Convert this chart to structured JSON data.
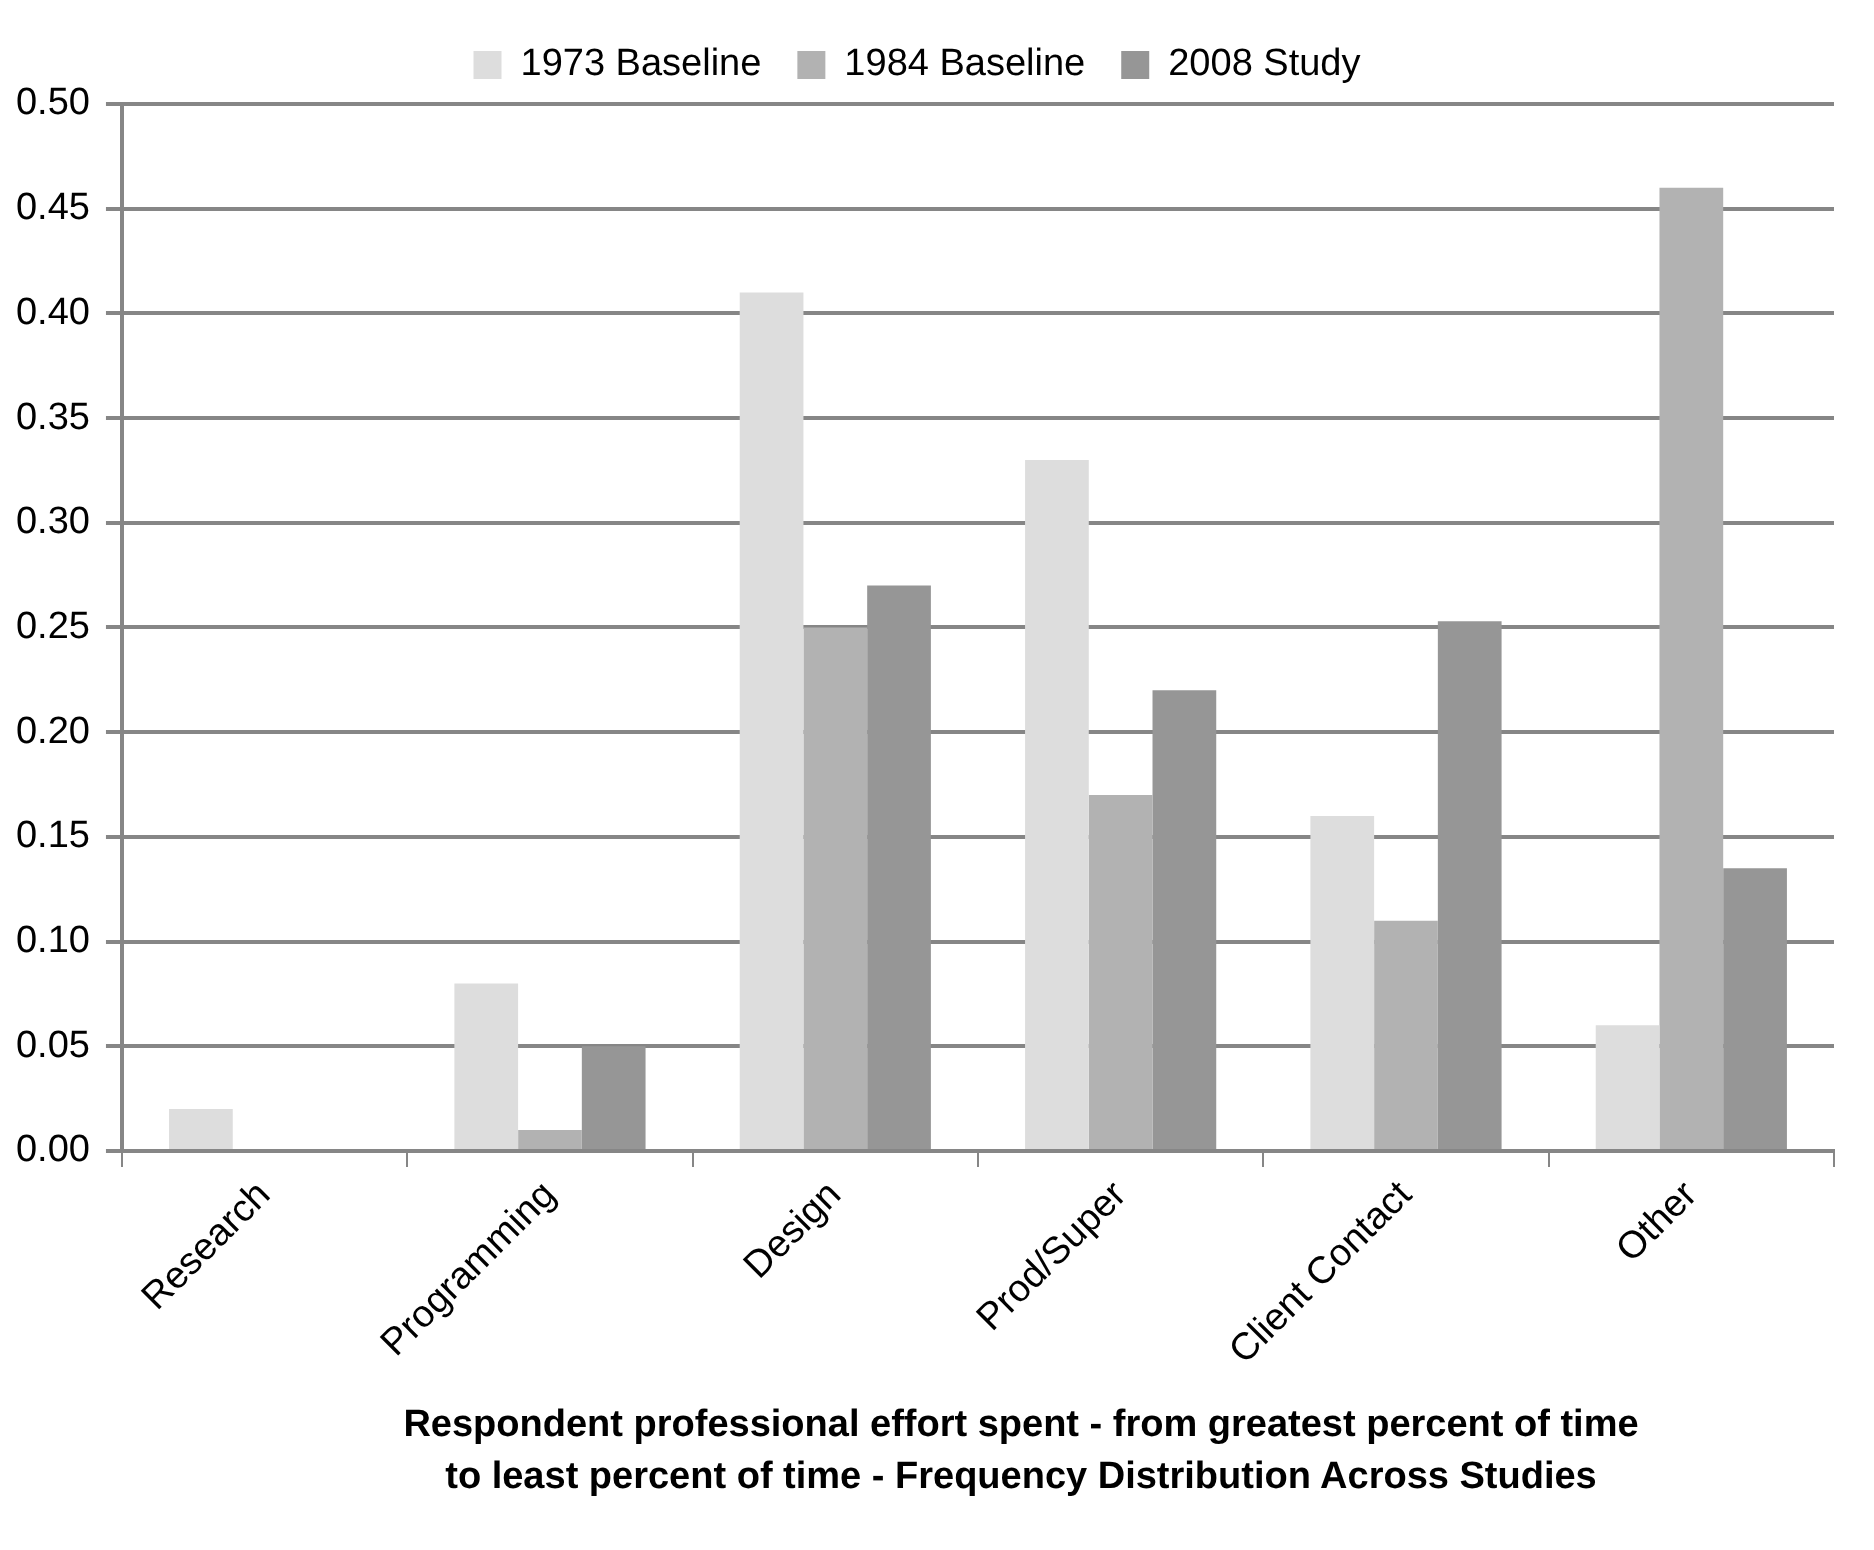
{
  "chart_data": {
    "type": "bar",
    "xlabel": "Respondent professional effort spent - from greatest percent of time to least percent of time - Frequency Distribution Across Studies",
    "categories": [
      "Research",
      "Programming",
      "Design",
      "Prod/Super",
      "Client Contact",
      "Other"
    ],
    "series": [
      {
        "name": "1973 Baseline",
        "color": "#dddddd",
        "values": [
          0.02,
          0.08,
          0.41,
          0.33,
          0.16,
          0.06
        ]
      },
      {
        "name": "1984 Baseline",
        "color": "#b2b2b2",
        "values": [
          0,
          0.01,
          0.25,
          0.17,
          0.11,
          0.46
        ]
      },
      {
        "name": "2008 Study",
        "color": "#969696",
        "values": [
          0,
          0.05,
          0.27,
          0.22,
          0.253,
          0.135
        ]
      }
    ],
    "ylim": [
      0,
      0.5
    ],
    "yticks": [
      {
        "value": 0,
        "label": "0.00"
      },
      {
        "value": 0.05,
        "label": "0.05"
      },
      {
        "value": 0.1,
        "label": "0.10"
      },
      {
        "value": 0.15,
        "label": "0.15"
      },
      {
        "value": 0.2,
        "label": "0.20"
      },
      {
        "value": 0.25,
        "label": "0.25"
      },
      {
        "value": 0.3,
        "label": "0.30"
      },
      {
        "value": 0.35,
        "label": "0.35"
      },
      {
        "value": 0.4,
        "label": "0.40"
      },
      {
        "value": 0.45,
        "label": "0.45"
      },
      {
        "value": 0.5,
        "label": "0.50"
      }
    ],
    "grid": "y",
    "legend": "top"
  }
}
